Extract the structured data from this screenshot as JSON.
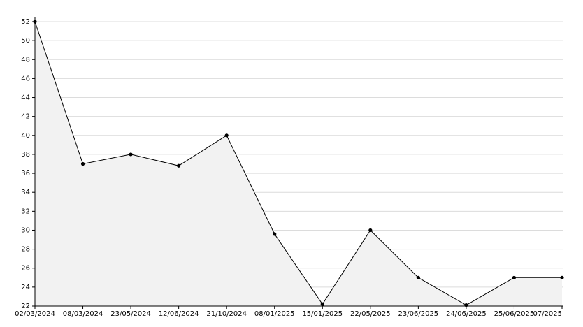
{
  "chart_data": {
    "type": "area",
    "categories": [
      "02/03/2024",
      "08/03/2024",
      "23/05/2024",
      "12/06/2024",
      "21/10/2024",
      "08/01/2025",
      "15/01/2025",
      "22/05/2025",
      "23/06/2025",
      "24/06/2025",
      "25/06/2025",
      "07/2025"
    ],
    "values": [
      52,
      37,
      38,
      36.8,
      40,
      29.6,
      22.2,
      30,
      25,
      22.1,
      25,
      25
    ],
    "color": "#000000",
    "fill": "#f2f2f2",
    "ylim": [
      22,
      52
    ],
    "yticks": [
      22,
      24,
      26,
      28,
      30,
      32,
      34,
      36,
      38,
      40,
      42,
      44,
      46,
      48,
      50,
      52
    ],
    "grid": true
  }
}
